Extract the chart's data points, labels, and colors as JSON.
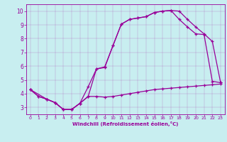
{
  "xlabel": "Windchill (Refroidissement éolien,°C)",
  "bg_color": "#c8eef0",
  "line_color": "#990099",
  "spine_color": "#990099",
  "xlim": [
    -0.5,
    23.5
  ],
  "ylim": [
    2.5,
    10.5
  ],
  "xticks": [
    0,
    1,
    2,
    3,
    4,
    5,
    6,
    7,
    8,
    9,
    10,
    11,
    12,
    13,
    14,
    15,
    16,
    17,
    18,
    19,
    20,
    21,
    22,
    23
  ],
  "yticks": [
    3,
    4,
    5,
    6,
    7,
    8,
    9,
    10
  ],
  "line1_x": [
    0,
    1,
    2,
    3,
    4,
    5,
    6,
    7,
    8,
    9,
    10,
    11,
    12,
    13,
    14,
    15,
    16,
    17,
    18,
    19,
    20,
    21,
    22,
    23
  ],
  "line1_y": [
    4.3,
    3.8,
    3.6,
    3.35,
    2.85,
    2.85,
    3.3,
    3.8,
    3.8,
    3.75,
    3.8,
    3.9,
    4.0,
    4.1,
    4.2,
    4.3,
    4.35,
    4.4,
    4.45,
    4.5,
    4.55,
    4.6,
    4.65,
    4.7
  ],
  "line2_x": [
    0,
    2,
    3,
    4,
    5,
    6,
    7,
    8,
    9,
    10,
    11,
    12,
    13,
    14,
    15,
    16,
    17,
    18,
    19,
    20,
    21,
    22,
    23
  ],
  "line2_y": [
    4.3,
    3.6,
    3.35,
    2.85,
    2.85,
    3.3,
    4.5,
    5.8,
    5.9,
    7.5,
    9.05,
    9.4,
    9.5,
    9.6,
    9.9,
    10.0,
    10.05,
    10.0,
    9.4,
    8.85,
    8.35,
    7.8,
    4.8
  ],
  "line3_x": [
    0,
    1,
    2,
    3,
    4,
    5,
    6,
    7,
    8,
    9,
    10,
    11,
    12,
    13,
    14,
    15,
    16,
    17,
    18,
    19,
    20,
    21,
    22,
    23
  ],
  "line3_y": [
    4.3,
    3.8,
    3.6,
    3.35,
    2.85,
    2.85,
    3.3,
    3.8,
    5.8,
    5.95,
    7.5,
    9.05,
    9.4,
    9.5,
    9.6,
    9.9,
    10.0,
    10.05,
    9.4,
    8.85,
    8.35,
    8.3,
    4.9,
    4.8
  ]
}
